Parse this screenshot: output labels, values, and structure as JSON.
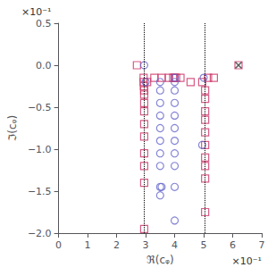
{
  "chart_data": {
    "type": "scatter",
    "xlabel": "ℜ(cᵩ)",
    "ylabel": "ℑ(cᵩ)",
    "xlim": [
      0,
      7
    ],
    "ylim": [
      -2.0,
      0.5
    ],
    "xticks": [
      0,
      1,
      2,
      3,
      4,
      5,
      6,
      7
    ],
    "yticks": [
      {
        "value": -2.0,
        "label": "−2.0"
      },
      {
        "value": -1.5,
        "label": "−1.5"
      },
      {
        "value": -1.0,
        "label": "−1.0"
      },
      {
        "value": -0.5,
        "label": "−0.5"
      },
      {
        "value": 0.0,
        "label": "0.0"
      },
      0.5
    ],
    "grid": false,
    "annotations": [
      {
        "text": "×10⁻¹",
        "axis": "x"
      },
      {
        "text": "×10⁻¹",
        "axis": "y"
      }
    ],
    "vlines": {
      "x": [
        2.95,
        5.05
      ],
      "color": "black",
      "line_style": "dotted"
    },
    "series": [
      {
        "marker": "square",
        "color": "#cc3366",
        "x": [
          2.7,
          2.93,
          2.93,
          2.94,
          2.95,
          2.95,
          2.95,
          2.95,
          2.95,
          2.95,
          2.95,
          2.95,
          2.95,
          2.95,
          3.05,
          3.3,
          3.55,
          3.8,
          3.95,
          4.0,
          4.05,
          4.2,
          4.55,
          4.95,
          5.05,
          5.05,
          5.05,
          5.05,
          5.05,
          5.05,
          5.05,
          5.05,
          5.05,
          5.05,
          5.15,
          5.35
        ],
        "values": [
          0.0,
          -0.15,
          -0.2,
          -0.25,
          -0.3,
          -0.35,
          -0.45,
          -0.55,
          -0.7,
          -0.85,
          -1.05,
          -1.2,
          -1.4,
          -1.95,
          -0.2,
          -0.15,
          -0.15,
          -0.15,
          -0.15,
          -0.15,
          -0.15,
          -0.15,
          -0.2,
          -0.2,
          -0.3,
          -0.4,
          -0.55,
          -0.65,
          -0.8,
          -0.95,
          -1.1,
          -1.2,
          -1.35,
          -1.75,
          -0.15,
          -0.15
        ]
      },
      {
        "marker": "circle",
        "color": "#6666cc",
        "x": [
          2.95,
          3.0,
          3.5,
          3.5,
          3.5,
          3.5,
          3.5,
          3.5,
          3.5,
          3.5,
          3.5,
          3.5,
          3.55,
          4.0,
          4.0,
          4.0,
          4.0,
          4.0,
          4.0,
          4.0,
          4.0,
          4.0,
          4.0,
          4.0,
          4.95,
          5.0
        ],
        "values": [
          0.0,
          -0.2,
          -0.2,
          -0.3,
          -0.45,
          -0.6,
          -0.75,
          -0.9,
          -1.05,
          -1.2,
          -1.45,
          -1.55,
          -1.45,
          -0.2,
          -0.3,
          -0.45,
          -0.6,
          -0.75,
          -0.9,
          -1.05,
          -1.2,
          -1.45,
          -1.85,
          -0.15,
          -0.95,
          -0.15
        ]
      },
      {
        "marker": "square",
        "color": "#cc3366",
        "x": [
          6.2
        ],
        "values": [
          0.0
        ]
      },
      {
        "marker": "cross",
        "color": "#333333",
        "x": [
          6.2
        ],
        "values": [
          0.0
        ]
      }
    ]
  }
}
